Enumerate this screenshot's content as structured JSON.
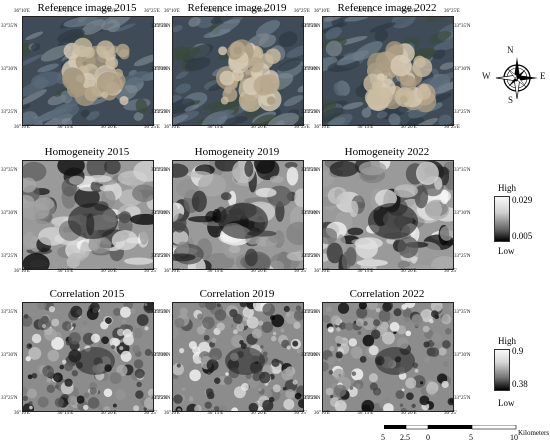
{
  "rows": [
    {
      "kind": "reference",
      "titles": [
        "Reference image 2015",
        "Reference image 2019",
        "Reference image 2022"
      ]
    },
    {
      "kind": "homogeneity",
      "titles": [
        "Homogeneity 2015",
        "Homogeneity 2019",
        "Homogeneity 2022"
      ]
    },
    {
      "kind": "correlation",
      "titles": [
        "Correlation 2015",
        "Correlation 2019",
        "Correlation 2022"
      ]
    }
  ],
  "axes": {
    "x_ticks": [
      "36°10'E",
      "36°15'E",
      "36°20'E",
      "36°25'E"
    ],
    "x_ticks_short": [
      "36°10'E",
      "36°15'E",
      "36°20'E",
      "36°25'"
    ],
    "y_ticks": [
      "33°35'N",
      "33°30'N",
      "33°25'N"
    ]
  },
  "compass": {
    "n": "N",
    "s": "S",
    "e": "E",
    "w": "W"
  },
  "legends": {
    "homogeneity": {
      "high_label": "High",
      "low_label": "Low",
      "max": "0.029",
      "min": "0.005"
    },
    "correlation": {
      "high_label": "High",
      "low_label": "Low",
      "max": "0.9",
      "min": "0.38"
    }
  },
  "scalebar": {
    "labels": [
      "5",
      "2.5",
      "0",
      "5",
      "10"
    ],
    "unit": "Kilometers"
  },
  "colors": {
    "ref_base": "#4a5560",
    "urban": "#c9bba0",
    "dark": "#111111",
    "light": "#f4f4f4"
  }
}
